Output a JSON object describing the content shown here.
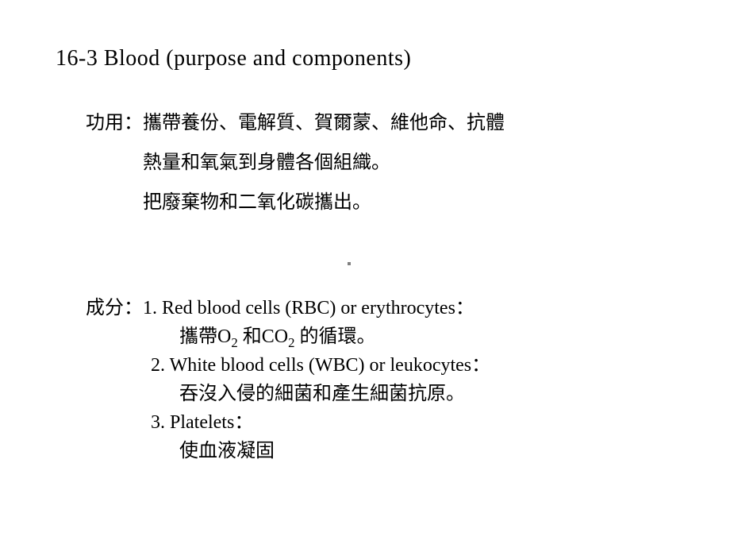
{
  "title": "16-3  Blood (purpose and components)",
  "purpose": {
    "label": "功用：",
    "line1_rest": "攜帶養份、電解質、賀爾蒙、維他命、抗體",
    "line2": "熱量和氧氣到身體各個組織。",
    "line3": "把廢棄物和二氧化碳攜出。"
  },
  "components": {
    "label": "成分：",
    "item1": "1. Red blood cells (RBC) or erythrocytes：",
    "desc1_pre": "攜帶O",
    "desc1_sub1": "2",
    "desc1_mid": " 和CO",
    "desc1_sub2": "2",
    "desc1_post": " 的循環。",
    "item2": "2. White blood cells (WBC) or leukocytes：",
    "desc2": "吞沒入侵的細菌和產生細菌抗原。",
    "item3": "3. Platelets：",
    "desc3": "使血液凝固"
  },
  "styles": {
    "background_color": "#ffffff",
    "text_color": "#000000",
    "title_fontsize": 28,
    "body_fontsize": 24,
    "font_family": "Times New Roman / SimSun serif"
  }
}
